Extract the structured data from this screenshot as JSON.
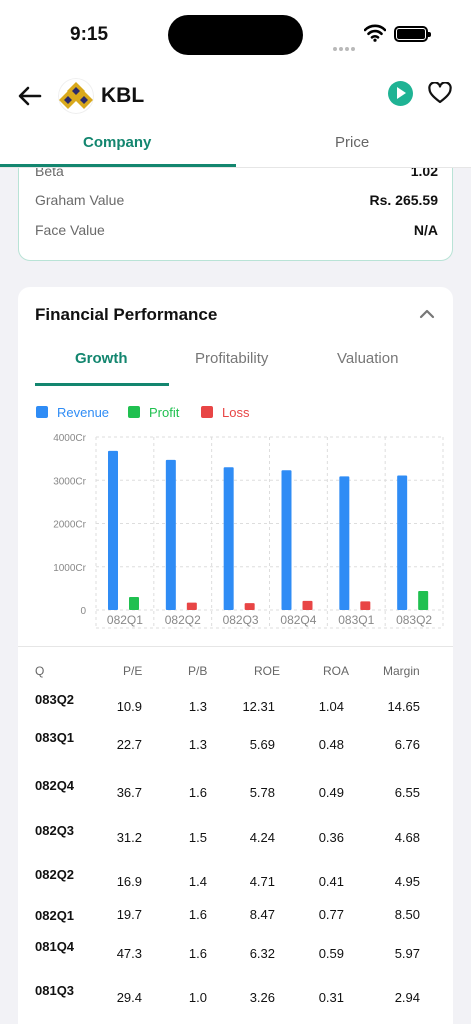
{
  "status": {
    "time": "9:15"
  },
  "header": {
    "ticker": "KBL",
    "tabs": [
      {
        "label": "Company",
        "active": true
      },
      {
        "label": "Price",
        "active": false
      }
    ]
  },
  "company_info": {
    "rows": [
      {
        "label": "Beta",
        "value": "1.02"
      },
      {
        "label": "Graham Value",
        "value": "Rs. 265.59"
      },
      {
        "label": "Face Value",
        "value": "N/A"
      }
    ]
  },
  "financial_performance": {
    "title": "Financial Performance",
    "tabs": [
      {
        "label": "Growth",
        "active": true
      },
      {
        "label": "Profitability",
        "active": false
      },
      {
        "label": "Valuation",
        "active": false
      }
    ],
    "legend": [
      {
        "label": "Revenue",
        "color": "#2f8cf5"
      },
      {
        "label": "Profit",
        "color": "#20c050"
      },
      {
        "label": "Loss",
        "color": "#e84545"
      }
    ]
  },
  "chart_data": {
    "type": "bar",
    "categories": [
      "082Q1",
      "082Q2",
      "082Q3",
      "082Q4",
      "083Q1",
      "083Q2"
    ],
    "series": [
      {
        "name": "Revenue",
        "values": [
          3680,
          3470,
          3300,
          3230,
          3090,
          3110
        ]
      },
      {
        "name": "Profit",
        "values": [
          300,
          0,
          0,
          0,
          0,
          440
        ]
      },
      {
        "name": "Loss",
        "values": [
          0,
          170,
          160,
          210,
          200,
          0
        ]
      }
    ],
    "y_ticks": [
      "4000Cr",
      "3000Cr",
      "2000Cr",
      "1000Cr",
      "0"
    ],
    "ylim": [
      0,
      4000
    ],
    "grid": true
  },
  "table": {
    "headers": [
      "Q",
      "P/E",
      "P/B",
      "ROE",
      "ROA",
      "Margin"
    ],
    "rows": [
      [
        "083Q2",
        "10.9",
        "1.3",
        "12.31",
        "1.04",
        "14.65"
      ],
      [
        "083Q1",
        "22.7",
        "1.3",
        "5.69",
        "0.48",
        "6.76"
      ],
      [
        "082Q4",
        "36.7",
        "1.6",
        "5.78",
        "0.49",
        "6.55"
      ],
      [
        "082Q3",
        "31.2",
        "1.5",
        "4.24",
        "0.36",
        "4.68"
      ],
      [
        "082Q2",
        "16.9",
        "1.4",
        "4.71",
        "0.41",
        "4.95"
      ],
      [
        "082Q1",
        "19.7",
        "1.6",
        "8.47",
        "0.77",
        "8.50"
      ],
      [
        "081Q4",
        "47.3",
        "1.6",
        "6.32",
        "0.59",
        "5.97"
      ],
      [
        "081Q3",
        "29.4",
        "1.0",
        "3.26",
        "0.31",
        "2.94"
      ]
    ]
  }
}
